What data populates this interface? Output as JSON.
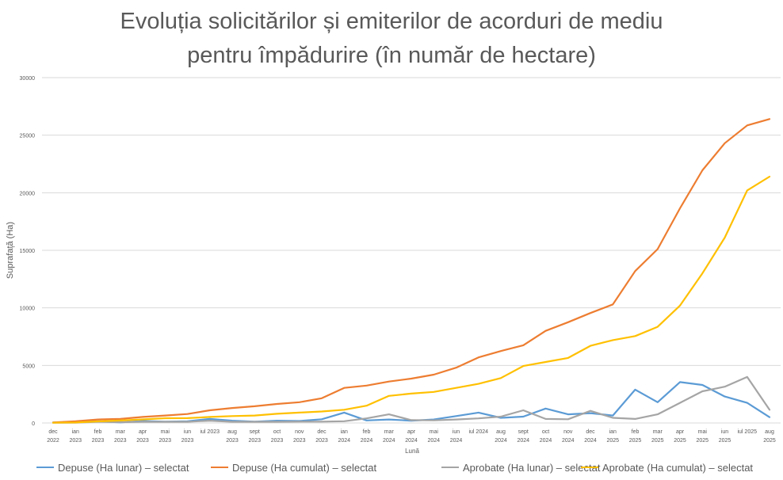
{
  "chart_data": {
    "type": "line",
    "title_line1": "Evoluția solicitărilor și emiterilor de acorduri de mediu",
    "title_line2": "pentru împădurire (în număr de hectare)",
    "xlabel": "Lună",
    "ylabel": "Suprafață (Ha)",
    "ylim": [
      0,
      30000
    ],
    "yticks": [
      "0",
      "5000",
      "10000",
      "15000",
      "20000",
      "25000",
      "30000"
    ],
    "ytick_values": [
      0,
      5000,
      10000,
      15000,
      20000,
      25000,
      30000
    ],
    "grid": "horizontal",
    "legend_position": "bottom",
    "categories": [
      "dec 2022",
      "ian 2023",
      "feb 2023",
      "mar 2023",
      "apr 2023",
      "mai 2023",
      "iun 2023",
      "iul 2023",
      "aug 2023",
      "sept 2023",
      "oct 2023",
      "nov 2023",
      "dec 2023",
      "ian 2024",
      "feb 2024",
      "mar 2024",
      "apr 2024",
      "mai 2024",
      "iun 2024",
      "iul 2024",
      "aug 2024",
      "sept 2024",
      "oct 2024",
      "nov 2024",
      "dec 2024",
      "ian 2025",
      "feb 2025",
      "mar 2025",
      "apr 2025",
      "mai 2025",
      "iun 2025",
      "iul 2025",
      "aug 2025"
    ],
    "series": [
      {
        "name": "Depuse (Ha lunar) – selectat",
        "color": "#5B9BD5",
        "values": [
          50,
          90,
          150,
          50,
          170,
          120,
          150,
          350,
          200,
          120,
          200,
          170,
          320,
          900,
          220,
          300,
          200,
          300,
          600,
          900,
          450,
          550,
          1250,
          750,
          850,
          650,
          2900,
          1800,
          3550,
          3300,
          2300,
          1750,
          500
        ]
      },
      {
        "name": "Depuse (Ha cumulat) – selectat",
        "color": "#ED7D31",
        "values": [
          50,
          150,
          300,
          350,
          520,
          650,
          780,
          1100,
          1300,
          1450,
          1650,
          1800,
          2150,
          3050,
          3250,
          3600,
          3850,
          4200,
          4800,
          5700,
          6250,
          6750,
          8000,
          8750,
          9550,
          10300,
          13200,
          15100,
          18650,
          21950,
          24300,
          25850,
          26400
        ]
      },
      {
        "name": "Aprobate (Ha lunar) – selectat",
        "color": "#A5A5A5",
        "values": [
          20,
          20,
          100,
          70,
          100,
          100,
          100,
          200,
          100,
          100,
          100,
          120,
          120,
          150,
          400,
          750,
          250,
          230,
          300,
          400,
          550,
          1100,
          350,
          320,
          1050,
          450,
          350,
          750,
          1750,
          2750,
          3150,
          4000,
          1150
        ]
      },
      {
        "name": "Aprobate (Ha cumulat) – selectat",
        "color": "#FFC000",
        "values": [
          20,
          40,
          140,
          210,
          310,
          410,
          420,
          520,
          600,
          650,
          800,
          900,
          1000,
          1150,
          1500,
          2350,
          2550,
          2700,
          3050,
          3400,
          3900,
          4950,
          5300,
          5650,
          6700,
          7200,
          7550,
          8350,
          10200,
          13000,
          16100,
          20200,
          21400
        ]
      }
    ]
  }
}
